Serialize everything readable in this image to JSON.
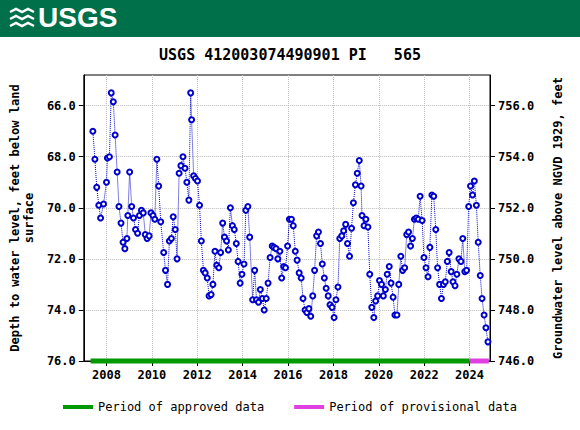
{
  "header": {
    "logo": "USGS"
  },
  "chart_data": {
    "type": "line",
    "title": "USGS 412003074490901 PI   565",
    "y_label": "Depth to water level, feet below land\nsurface",
    "y2_label": "Groundwater level above NGVD 1929, feet",
    "xlim": [
      2007.0,
      2024.9
    ],
    "xticks": [
      2008,
      2010,
      2012,
      2014,
      2016,
      2018,
      2020,
      2022,
      2024
    ],
    "ylim": [
      76.0,
      64.8
    ],
    "yticks": [
      {
        "value": 66,
        "label": "66.0"
      },
      {
        "value": 68,
        "label": "68.0"
      },
      {
        "value": 70,
        "label": "70.0"
      },
      {
        "value": 72,
        "label": "72.0"
      },
      {
        "value": 74,
        "label": "74.0"
      },
      {
        "value": 76,
        "label": "76.0"
      }
    ],
    "y2lim": [
      746.0,
      757.2
    ],
    "y2ticks": [
      {
        "value": 746,
        "label": "746.0"
      },
      {
        "value": 748,
        "label": "748.0"
      },
      {
        "value": 750,
        "label": "750.0"
      },
      {
        "value": 752,
        "label": "752.0"
      },
      {
        "value": 754,
        "label": "754.0"
      },
      {
        "value": 756,
        "label": "756.0"
      }
    ],
    "grid": true,
    "legend": "bottom",
    "color": "#0000cc",
    "marker": "circle",
    "line_style": "dotted",
    "x": [
      2007.4,
      2007.49,
      2007.57,
      2007.66,
      2007.74,
      2007.87,
      2008.0,
      2008.04,
      2008.13,
      2008.21,
      2008.3,
      2008.38,
      2008.47,
      2008.55,
      2008.64,
      2008.73,
      2008.81,
      2008.9,
      2008.94,
      2009.02,
      2009.11,
      2009.19,
      2009.28,
      2009.37,
      2009.45,
      2009.54,
      2009.62,
      2009.71,
      2009.79,
      2009.88,
      2009.96,
      2010.05,
      2010.13,
      2010.22,
      2010.3,
      2010.39,
      2010.52,
      2010.6,
      2010.69,
      2010.77,
      2010.86,
      2010.94,
      2011.03,
      2011.11,
      2011.2,
      2011.28,
      2011.37,
      2011.46,
      2011.54,
      2011.63,
      2011.71,
      2011.75,
      2011.84,
      2011.92,
      2012.01,
      2012.1,
      2012.18,
      2012.27,
      2012.35,
      2012.44,
      2012.52,
      2012.61,
      2012.69,
      2012.78,
      2012.86,
      2012.95,
      2013.03,
      2013.12,
      2013.2,
      2013.29,
      2013.37,
      2013.46,
      2013.55,
      2013.63,
      2013.72,
      2013.8,
      2013.89,
      2013.97,
      2014.06,
      2014.14,
      2014.23,
      2014.31,
      2014.44,
      2014.53,
      2014.61,
      2014.7,
      2014.78,
      2014.87,
      2014.95,
      2015.04,
      2015.12,
      2015.21,
      2015.3,
      2015.38,
      2015.47,
      2015.55,
      2015.64,
      2015.72,
      2015.81,
      2015.89,
      2015.98,
      2016.06,
      2016.15,
      2016.23,
      2016.32,
      2016.4,
      2016.49,
      2016.58,
      2016.66,
      2016.75,
      2016.83,
      2016.92,
      2017.0,
      2017.09,
      2017.17,
      2017.26,
      2017.34,
      2017.43,
      2017.51,
      2017.6,
      2017.68,
      2017.77,
      2017.85,
      2017.94,
      2018.03,
      2018.11,
      2018.2,
      2018.28,
      2018.37,
      2018.45,
      2018.54,
      2018.62,
      2018.71,
      2018.8,
      2018.88,
      2018.97,
      2019.05,
      2019.14,
      2019.22,
      2019.26,
      2019.35,
      2019.43,
      2019.52,
      2019.6,
      2019.69,
      2019.78,
      2019.86,
      2019.95,
      2020.03,
      2020.12,
      2020.2,
      2020.29,
      2020.37,
      2020.46,
      2020.54,
      2020.63,
      2020.71,
      2020.8,
      2020.88,
      2020.97,
      2021.05,
      2021.14,
      2021.23,
      2021.31,
      2021.4,
      2021.48,
      2021.57,
      2021.65,
      2021.74,
      2021.82,
      2021.91,
      2021.99,
      2022.08,
      2022.17,
      2022.25,
      2022.34,
      2022.42,
      2022.51,
      2022.59,
      2022.68,
      2022.76,
      2022.85,
      2022.93,
      2023.02,
      2023.1,
      2023.19,
      2023.27,
      2023.36,
      2023.44,
      2023.53,
      2023.62,
      2023.7,
      2023.79,
      2023.87,
      2023.96,
      2024.04,
      2024.13,
      2024.21,
      2024.3,
      2024.38,
      2024.47,
      2024.55,
      2024.64,
      2024.72,
      2024.81
    ],
    "values": [
      67.0,
      68.1,
      69.2,
      69.9,
      70.4,
      69.85,
      69.0,
      68.05,
      68.0,
      65.5,
      65.85,
      67.15,
      68.6,
      69.95,
      70.6,
      71.35,
      71.6,
      71.2,
      70.3,
      68.6,
      69.95,
      70.4,
      70.85,
      71.0,
      70.3,
      70.1,
      70.2,
      71.05,
      71.2,
      71.1,
      70.2,
      70.3,
      70.45,
      68.1,
      69.15,
      70.55,
      71.75,
      72.45,
      73.0,
      71.3,
      71.2,
      70.35,
      70.85,
      72.0,
      68.65,
      68.35,
      68.0,
      68.45,
      69.0,
      69.7,
      65.5,
      66.55,
      68.75,
      68.85,
      68.95,
      69.9,
      71.3,
      72.45,
      72.55,
      72.75,
      73.45,
      73.4,
      73.0,
      71.7,
      72.25,
      72.35,
      71.75,
      70.6,
      71.15,
      71.3,
      71.65,
      70.0,
      70.7,
      70.85,
      71.4,
      72.1,
      72.95,
      72.6,
      72.2,
      70.1,
      69.95,
      71.15,
      73.6,
      72.45,
      73.6,
      73.7,
      73.2,
      73.55,
      74.0,
      73.55,
      72.95,
      71.95,
      71.5,
      71.55,
      71.6,
      72.0,
      71.7,
      72.75,
      72.3,
      72.35,
      71.5,
      70.45,
      70.45,
      70.7,
      71.7,
      72.05,
      72.55,
      72.75,
      73.55,
      74.0,
      74.1,
      73.95,
      74.25,
      73.45,
      72.45,
      71.1,
      70.95,
      71.4,
      72.2,
      72.75,
      73.15,
      73.45,
      73.8,
      73.9,
      74.3,
      73.6,
      73.1,
      71.2,
      71.1,
      70.9,
      70.65,
      71.4,
      71.9,
      70.8,
      69.8,
      69.1,
      68.65,
      68.15,
      69.15,
      70.3,
      70.7,
      70.45,
      70.75,
      72.6,
      73.9,
      74.3,
      73.65,
      73.45,
      72.85,
      73.0,
      73.45,
      73.2,
      72.6,
      72.3,
      72.95,
      73.5,
      74.2,
      74.2,
      73.0,
      71.9,
      72.45,
      72.35,
      71.05,
      70.95,
      71.5,
      71.2,
      70.45,
      70.4,
      70.45,
      69.55,
      70.5,
      71.95,
      72.35,
      72.7,
      71.55,
      69.5,
      69.55,
      70.85,
      72.35,
      73.0,
      73.55,
      73.0,
      72.9,
      72.1,
      71.75,
      72.5,
      72.9,
      73.05,
      72.6,
      72.0,
      72.1,
      71.2,
      72.5,
      72.45,
      69.95,
      69.15,
      69.5,
      68.95,
      69.9,
      71.35,
      72.65,
      73.55,
      74.2,
      74.7,
      75.25
    ],
    "periods": [
      {
        "name": "Period of approved data",
        "color": "#009900",
        "start": 2007.3,
        "end": 2024.0,
        "level": 76.0
      },
      {
        "name": "Period of provisional data",
        "color": "#e040e0",
        "start": 2024.0,
        "end": 2024.85,
        "level": 76.0
      }
    ]
  }
}
